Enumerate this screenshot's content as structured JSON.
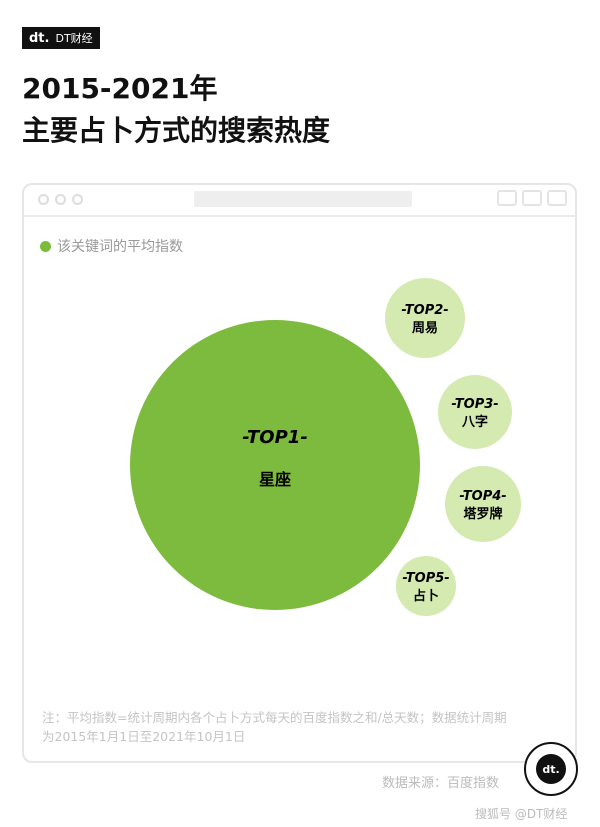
{
  "brand": {
    "logo_mark": "dt.",
    "name": "DT财经"
  },
  "title": {
    "line1": "2015-2021年",
    "line2": "主要占卜方式的搜索热度"
  },
  "chart_data": {
    "type": "bubble",
    "legend": "该关键词的平均指数",
    "legend_placement": "top-left",
    "color": "#7dbb3f",
    "items": [
      {
        "rank": "-TOP1-",
        "label": "星座"
      },
      {
        "rank": "-TOP2-",
        "label": "周易"
      },
      {
        "rank": "-TOP3-",
        "label": "八字"
      },
      {
        "rank": "-TOP4-",
        "label": "塔罗牌"
      },
      {
        "rank": "-TOP5-",
        "label": "占卜"
      }
    ]
  },
  "note": "注：平均指数=统计周期内各个占卜方式每天的百度指数之和/总天数；数据统计周期为2015年1月1日至2021年10月1日",
  "source": "数据来源：百度指数",
  "watermark": "搜狐号 @DT财经"
}
